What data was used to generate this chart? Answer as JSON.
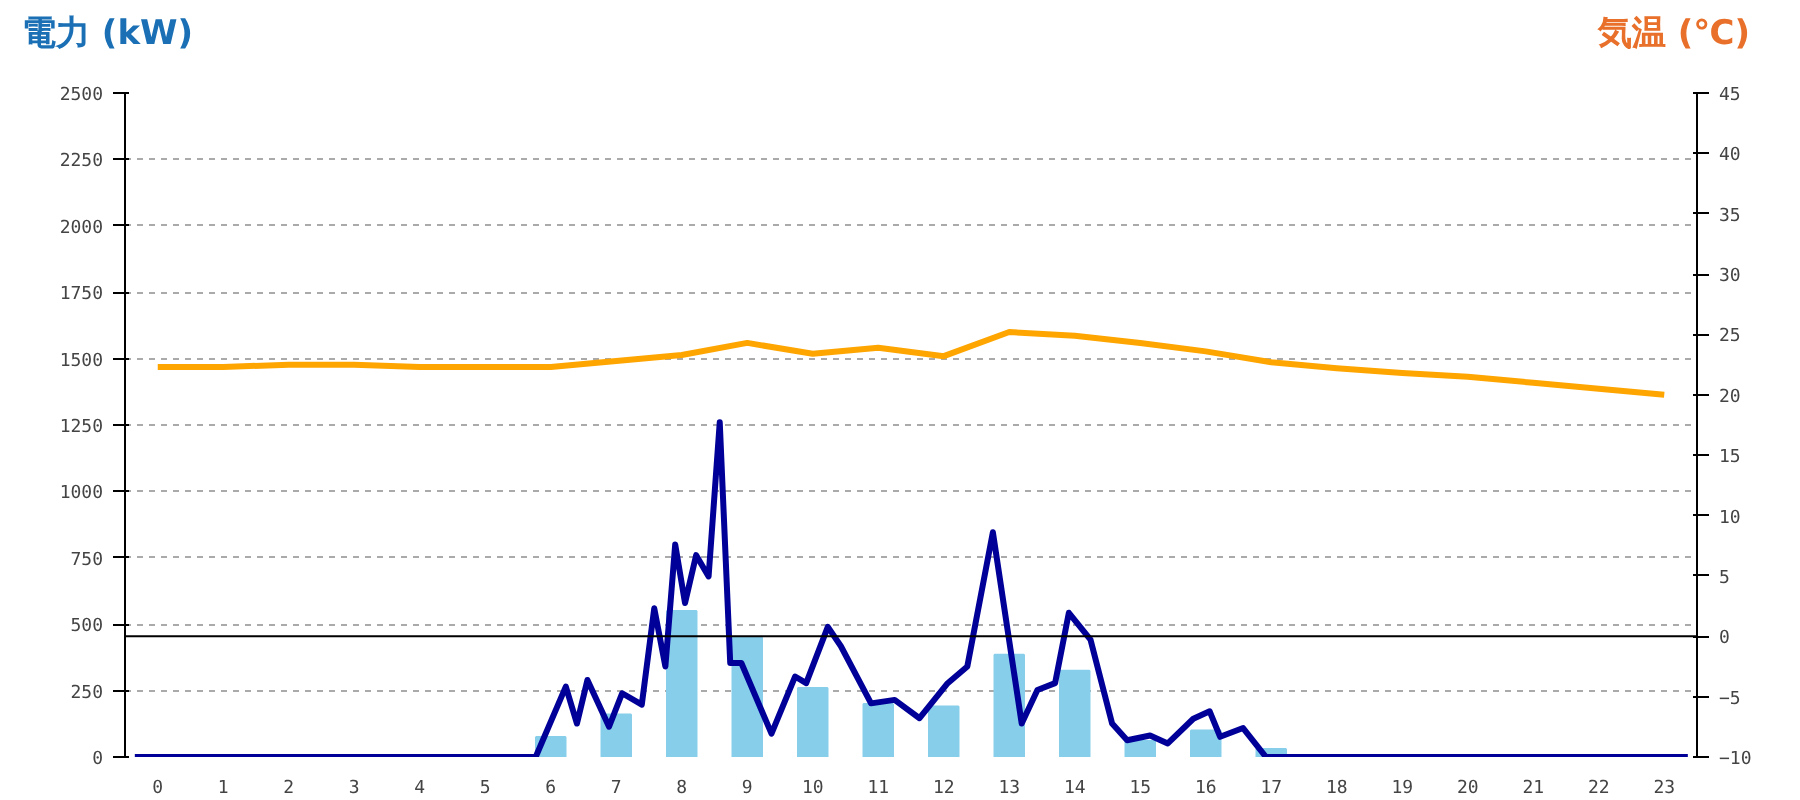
{
  "chart_data": {
    "type": "bar",
    "ylabel": "電力 (kW)",
    "y2label": "気温 (℃)",
    "x": [
      0,
      1,
      2,
      3,
      4,
      5,
      6,
      7,
      8,
      9,
      10,
      11,
      12,
      13,
      14,
      15,
      16,
      17,
      18,
      19,
      20,
      21,
      22,
      23
    ],
    "xlim": [
      -0.5,
      23.5
    ],
    "xticks": [
      0,
      1,
      2,
      3,
      4,
      5,
      6,
      7,
      8,
      9,
      10,
      11,
      12,
      13,
      14,
      15,
      16,
      17,
      18,
      19,
      20,
      21,
      22,
      23
    ],
    "ylim": [
      0,
      2500
    ],
    "yticks": [
      0,
      250,
      500,
      750,
      1000,
      1250,
      1500,
      1750,
      2000,
      2250,
      2500
    ],
    "y2lim": [
      -10,
      45
    ],
    "y2ticks": [
      -10,
      -5,
      0,
      5,
      10,
      15,
      20,
      25,
      30,
      35,
      40,
      45
    ],
    "grid": "y",
    "series": [
      {
        "color": "#87ceeb",
        "values": [
          0,
          0,
          0,
          0,
          0,
          0,
          75,
          160,
          550,
          450,
          260,
          200,
          190,
          385,
          325,
          60,
          100,
          30,
          0,
          0,
          0,
          0,
          0,
          0
        ]
      },
      {
        "type": "line",
        "color": "#000099",
        "x": [
          -0.35,
          5.77,
          6.23,
          6.4,
          6.56,
          6.89,
          7.09,
          7.39,
          7.58,
          7.75,
          7.9,
          8.05,
          8.22,
          8.41,
          8.58,
          8.74,
          8.91,
          9.37,
          9.73,
          9.9,
          10.23,
          10.43,
          10.89,
          11.25,
          11.63,
          12.06,
          12.36,
          12.75,
          13.19,
          13.43,
          13.7,
          13.91,
          14.24,
          14.57,
          14.8,
          15.15,
          15.42,
          15.81,
          16.06,
          16.22,
          16.57,
          16.92,
          23.36
        ],
        "values": [
          0,
          0,
          265,
          126,
          290,
          114,
          240,
          197,
          560,
          341,
          800,
          580,
          760,
          680,
          1260,
          354,
          354,
          88,
          303,
          278,
          490,
          417,
          202,
          215,
          146,
          278,
          341,
          846,
          126,
          252,
          278,
          543,
          442,
          126,
          63,
          81,
          51,
          144,
          172,
          76,
          109,
          0,
          0
        ]
      },
      {
        "type": "line",
        "color": "#ffa500",
        "axis": "y2",
        "values": [
          22.3,
          22.3,
          22.5,
          22.5,
          22.3,
          22.3,
          22.3,
          22.8,
          23.3,
          24.3,
          23.4,
          23.9,
          23.2,
          25.2,
          24.9,
          24.3,
          23.6,
          22.7,
          22.2,
          21.8,
          21.5,
          21.0,
          20.5,
          20.0
        ]
      }
    ],
    "ref_lines": [
      {
        "axis": "y2",
        "value": 0,
        "color": "#000000"
      }
    ]
  }
}
